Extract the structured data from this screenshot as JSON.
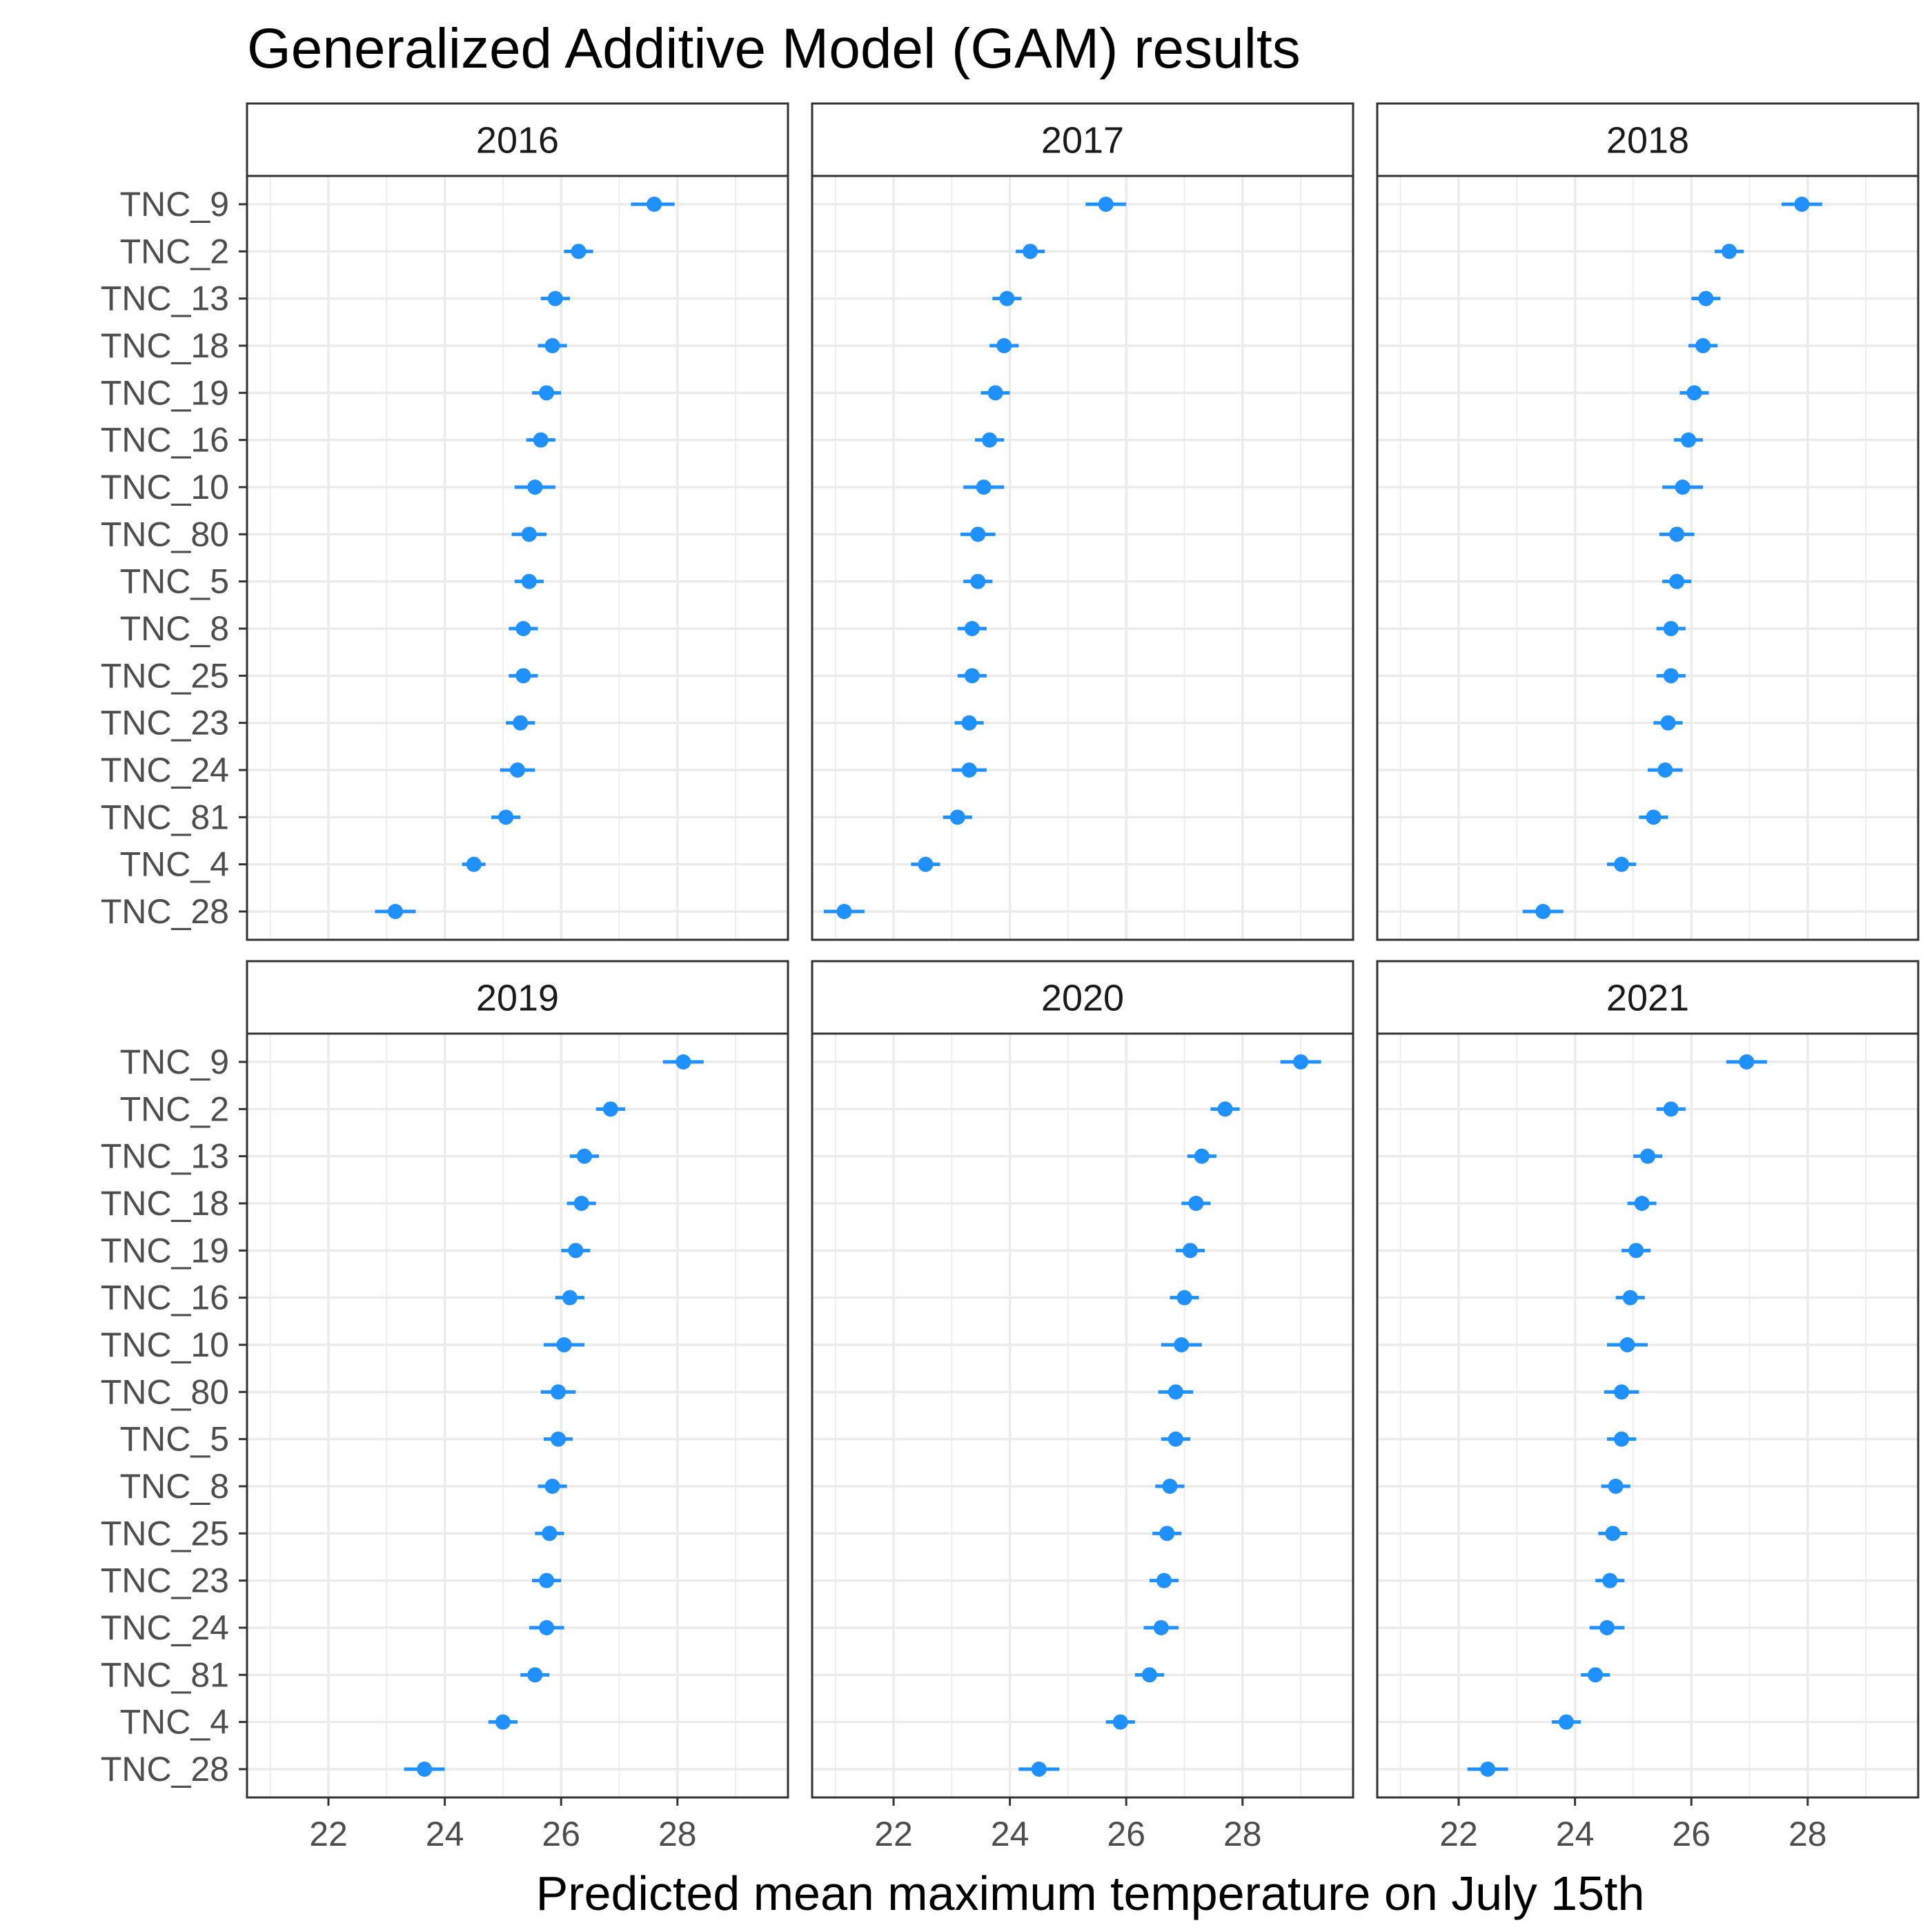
{
  "chart_data": {
    "type": "scatter",
    "title": "Generalized Additive Model (GAM) results",
    "xlabel": "Predicted mean maximum temperature on July 15th",
    "ylabel": "",
    "xlim": [
      20.6,
      29.9
    ],
    "xticks": [
      22,
      24,
      26,
      28
    ],
    "grid": true,
    "point_color": "#1E90FF",
    "sites": [
      "TNC_9",
      "TNC_2",
      "TNC_13",
      "TNC_18",
      "TNC_19",
      "TNC_16",
      "TNC_10",
      "TNC_80",
      "TNC_5",
      "TNC_8",
      "TNC_25",
      "TNC_23",
      "TNC_24",
      "TNC_81",
      "TNC_4",
      "TNC_28"
    ],
    "panels": [
      {
        "label": "2016",
        "values": [
          27.6,
          26.3,
          25.9,
          25.85,
          25.75,
          25.65,
          25.55,
          25.45,
          25.45,
          25.35,
          25.35,
          25.3,
          25.25,
          25.05,
          24.5,
          23.15
        ],
        "lower": [
          27.2,
          26.05,
          25.65,
          25.6,
          25.5,
          25.4,
          25.2,
          25.15,
          25.2,
          25.1,
          25.1,
          25.05,
          24.95,
          24.8,
          24.3,
          22.8
        ],
        "upper": [
          27.95,
          26.55,
          26.15,
          26.1,
          26.0,
          25.9,
          25.9,
          25.75,
          25.7,
          25.6,
          25.6,
          25.55,
          25.55,
          25.3,
          24.7,
          23.5
        ]
      },
      {
        "label": "2017",
        "values": [
          25.65,
          24.35,
          23.95,
          23.9,
          23.75,
          23.65,
          23.55,
          23.45,
          23.45,
          23.35,
          23.35,
          23.3,
          23.3,
          23.1,
          22.55,
          21.15
        ],
        "lower": [
          25.3,
          24.1,
          23.7,
          23.65,
          23.5,
          23.4,
          23.2,
          23.15,
          23.2,
          23.1,
          23.1,
          23.05,
          23.0,
          22.85,
          22.3,
          20.8
        ],
        "upper": [
          26.0,
          24.6,
          24.2,
          24.15,
          24.0,
          23.9,
          23.9,
          23.75,
          23.7,
          23.6,
          23.6,
          23.55,
          23.6,
          23.35,
          22.8,
          21.5
        ]
      },
      {
        "label": "2018",
        "values": [
          27.9,
          26.65,
          26.25,
          26.2,
          26.05,
          25.95,
          25.85,
          25.75,
          25.75,
          25.65,
          25.65,
          25.6,
          25.55,
          25.35,
          24.8,
          23.45
        ],
        "lower": [
          27.55,
          26.4,
          26.0,
          25.95,
          25.8,
          25.7,
          25.5,
          25.45,
          25.5,
          25.4,
          25.4,
          25.35,
          25.25,
          25.1,
          24.55,
          23.1
        ],
        "upper": [
          28.25,
          26.9,
          26.5,
          26.45,
          26.3,
          26.2,
          26.2,
          26.05,
          26.0,
          25.9,
          25.9,
          25.85,
          25.85,
          25.6,
          25.05,
          23.8
        ]
      },
      {
        "label": "2019",
        "values": [
          28.1,
          26.85,
          26.4,
          26.35,
          26.25,
          26.15,
          26.05,
          25.95,
          25.95,
          25.85,
          25.8,
          25.75,
          25.75,
          25.55,
          25.0,
          23.65
        ],
        "lower": [
          27.75,
          26.6,
          26.15,
          26.1,
          26.0,
          25.9,
          25.7,
          25.65,
          25.7,
          25.6,
          25.55,
          25.5,
          25.45,
          25.3,
          24.75,
          23.3
        ],
        "upper": [
          28.45,
          27.1,
          26.65,
          26.6,
          26.5,
          26.4,
          26.4,
          26.25,
          26.2,
          26.1,
          26.05,
          26.0,
          26.05,
          25.8,
          25.25,
          24.0
        ]
      },
      {
        "label": "2020",
        "values": [
          29.0,
          27.7,
          27.3,
          27.2,
          27.1,
          27.0,
          26.95,
          26.85,
          26.85,
          26.75,
          26.7,
          26.65,
          26.6,
          26.4,
          25.9,
          24.5
        ],
        "lower": [
          28.65,
          27.45,
          27.05,
          26.95,
          26.85,
          26.75,
          26.6,
          26.55,
          26.6,
          26.5,
          26.45,
          26.4,
          26.3,
          26.15,
          25.65,
          24.15
        ],
        "upper": [
          29.35,
          27.95,
          27.55,
          27.45,
          27.35,
          27.25,
          27.3,
          27.15,
          27.1,
          27.0,
          26.95,
          26.9,
          26.9,
          26.65,
          26.15,
          24.85
        ]
      },
      {
        "label": "2021",
        "values": [
          26.95,
          25.65,
          25.25,
          25.15,
          25.05,
          24.95,
          24.9,
          24.8,
          24.8,
          24.7,
          24.65,
          24.6,
          24.55,
          24.35,
          23.85,
          22.5
        ],
        "lower": [
          26.6,
          25.4,
          25.0,
          24.9,
          24.8,
          24.7,
          24.55,
          24.5,
          24.55,
          24.45,
          24.4,
          24.35,
          24.25,
          24.1,
          23.6,
          22.15
        ],
        "upper": [
          27.3,
          25.9,
          25.5,
          25.4,
          25.3,
          25.2,
          25.25,
          25.1,
          25.05,
          24.95,
          24.9,
          24.85,
          24.85,
          24.6,
          24.1,
          22.85
        ]
      }
    ]
  }
}
